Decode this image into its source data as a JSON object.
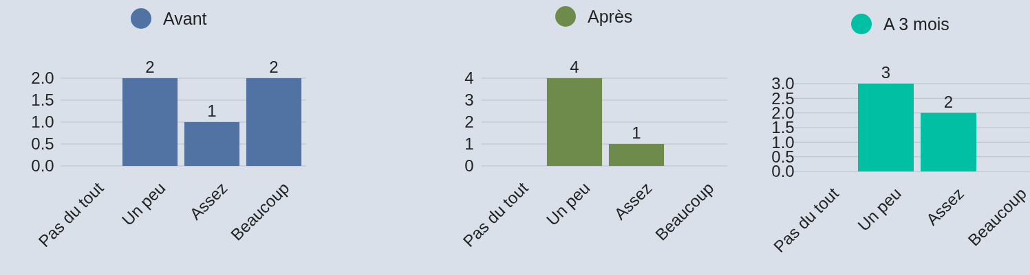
{
  "chart_data": [
    {
      "type": "bar",
      "categories": [
        "Pas du tout",
        "Un peu",
        "Assez",
        "Beaucoup"
      ],
      "series": [
        {
          "name": "Avant",
          "color": "#5073a3",
          "values": [
            0,
            2,
            1,
            2
          ]
        }
      ],
      "value_labels": [
        null,
        "2",
        "1",
        "2"
      ],
      "ylim": [
        0,
        2
      ],
      "yticks": [
        {
          "value": 0,
          "label": "0.0"
        },
        {
          "value": 0.5,
          "label": "0.5"
        },
        {
          "value": 1,
          "label": "1.0"
        },
        {
          "value": 1.5,
          "label": "1.5"
        },
        {
          "value": 2,
          "label": "2.0"
        }
      ],
      "grid": "y",
      "legend": "top"
    },
    {
      "type": "bar",
      "categories": [
        "Pas du tout",
        "Un peu",
        "Assez",
        "Beaucoup"
      ],
      "series": [
        {
          "name": "Après",
          "color": "#6e8b4b",
          "values": [
            0,
            4,
            1,
            0
          ]
        }
      ],
      "value_labels": [
        null,
        "4",
        "1",
        null
      ],
      "ylim": [
        0,
        4
      ],
      "yticks": [
        0,
        1,
        2,
        3,
        4
      ],
      "grid": "y",
      "legend": "top"
    },
    {
      "type": "bar",
      "categories": [
        "Pas du tout",
        "Un peu",
        "Assez",
        "Beaucoup"
      ],
      "series": [
        {
          "name": "A 3 mois",
          "color": "#00bfa2",
          "values": [
            0,
            3,
            2,
            0
          ]
        }
      ],
      "value_labels": [
        null,
        "3",
        "2",
        null
      ],
      "ylim": [
        0,
        3
      ],
      "yticks": [
        {
          "value": 0,
          "label": "0.0"
        },
        {
          "value": 0.5,
          "label": "0.5"
        },
        {
          "value": 1,
          "label": "1.0"
        },
        {
          "value": 1.5,
          "label": "1.5"
        },
        {
          "value": 2,
          "label": "2.0"
        },
        {
          "value": 2.5,
          "label": "2.5"
        },
        {
          "value": 3,
          "label": "3.0"
        }
      ],
      "grid": "y",
      "legend": "top"
    }
  ]
}
